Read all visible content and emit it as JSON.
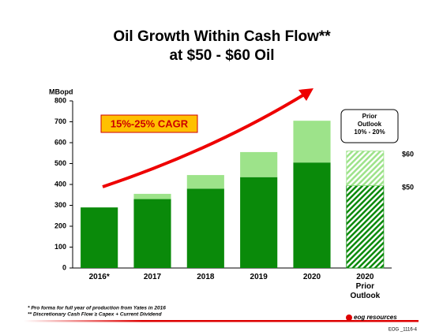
{
  "chart_data": {
    "type": "stacked_bar",
    "title": "Oil Growth Within Cash Flow**",
    "subtitle": "at $50 - $60 Oil",
    "y_label": "MBopd",
    "categories": [
      "2016*",
      "2017",
      "2018",
      "2019",
      "2020",
      "2020 Prior Outlook"
    ],
    "series": [
      {
        "color": "#0a8a0a",
        "values": [
          290,
          330,
          380,
          435,
          505,
          395
        ]
      },
      {
        "color": "#9de38a",
        "values": [
          0,
          25,
          65,
          120,
          200,
          165
        ]
      }
    ],
    "hatched": [
      false,
      false,
      false,
      false,
      false,
      true
    ],
    "ylim": [
      0,
      800
    ],
    "yticks": [
      0,
      100,
      200,
      300,
      400,
      500,
      600,
      700,
      800
    ],
    "annotations": {
      "cagr": "15%-25% CAGR",
      "box_title": "Prior Outlook",
      "box_range": "10% - 20%",
      "upper": "$60",
      "lower": "$50"
    },
    "footnotes": [
      "*  Pro forma for full year of production from Yates in 2016",
      "** Discretionary Cash Flow ≥ Capex + Current Dividend"
    ],
    "logo": "eog resources",
    "page_code": "EOG _1116-4"
  }
}
